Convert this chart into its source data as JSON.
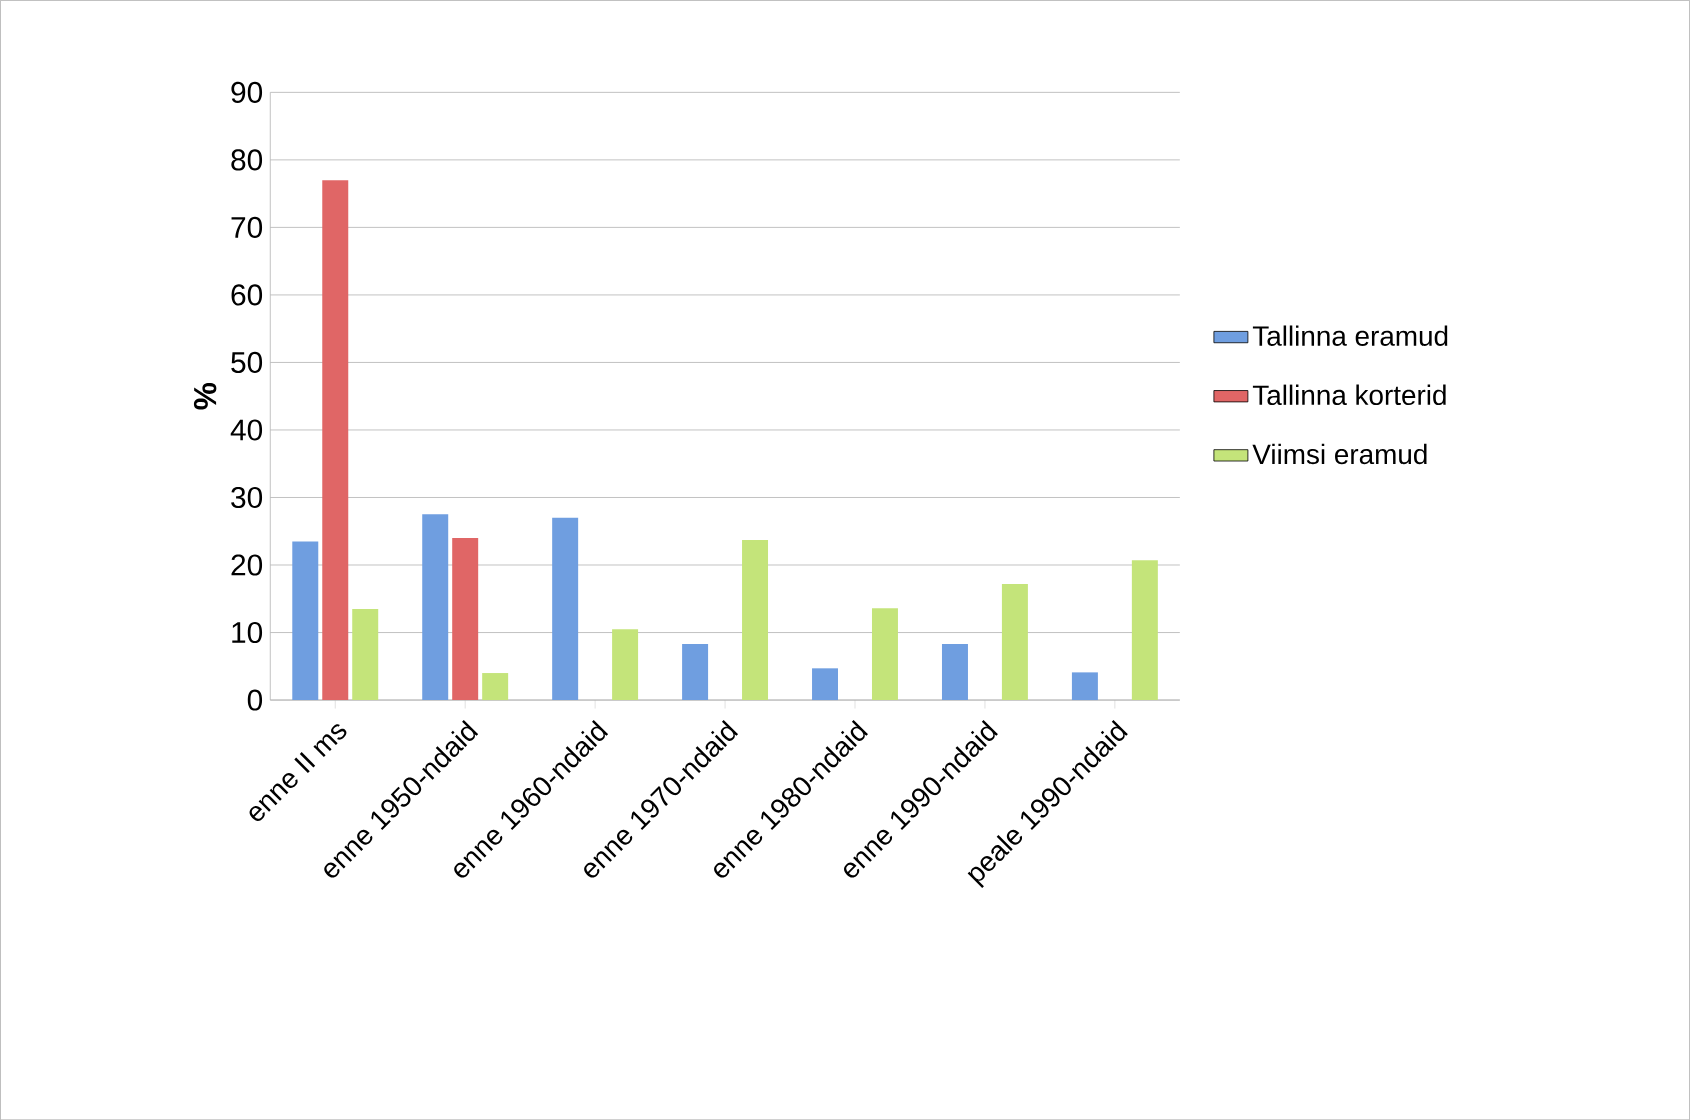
{
  "chart_data": {
    "type": "bar",
    "ylabel": "%",
    "categories": [
      "enne II ms",
      "enne 1950-ndaid",
      "enne 1960-ndaid",
      "enne 1970-ndaid",
      "enne 1980-ndaid",
      "enne 1990-ndaid",
      "peale 1990-ndaid"
    ],
    "series": [
      {
        "name": "Tallinna eramud",
        "color": "#6f9ee0",
        "values": [
          23.5,
          27.5,
          27,
          8.3,
          4.7,
          8.3,
          4.1
        ]
      },
      {
        "name": "Tallinna korterid",
        "color": "#e06666",
        "values": [
          77,
          24,
          null,
          null,
          null,
          null,
          null
        ]
      },
      {
        "name": "Viimsi eramud",
        "color": "#c4e47a",
        "values": [
          13.5,
          4,
          10.5,
          23.7,
          13.6,
          17.2,
          20.7
        ]
      }
    ],
    "ylim": [
      0,
      90
    ],
    "yticks": [
      0,
      10,
      20,
      30,
      40,
      50,
      60,
      70,
      80,
      90
    ],
    "grid": "y",
    "legend": "right"
  }
}
